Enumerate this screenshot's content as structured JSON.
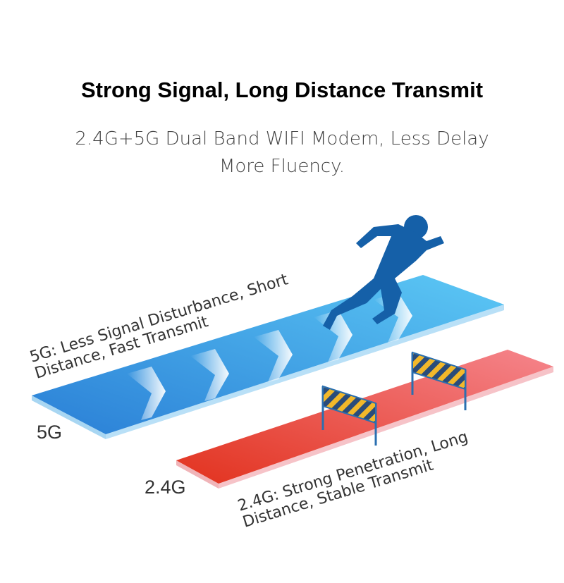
{
  "header": {
    "title": "Strong Signal, Long Distance Transmit",
    "subtitle": [
      "2.4G+5G Dual Band WIFI Modem, Less Delay",
      "More Fluency."
    ]
  },
  "bands": [
    {
      "label": "5G",
      "caption": [
        "5G: Less Signal Disturbance, Short",
        "Distance, Fast Transmit"
      ]
    },
    {
      "label": "2.4G",
      "caption": [
        "2.4G: Strong Penetration, Long",
        "Distance, Stable Transmit"
      ]
    }
  ]
}
